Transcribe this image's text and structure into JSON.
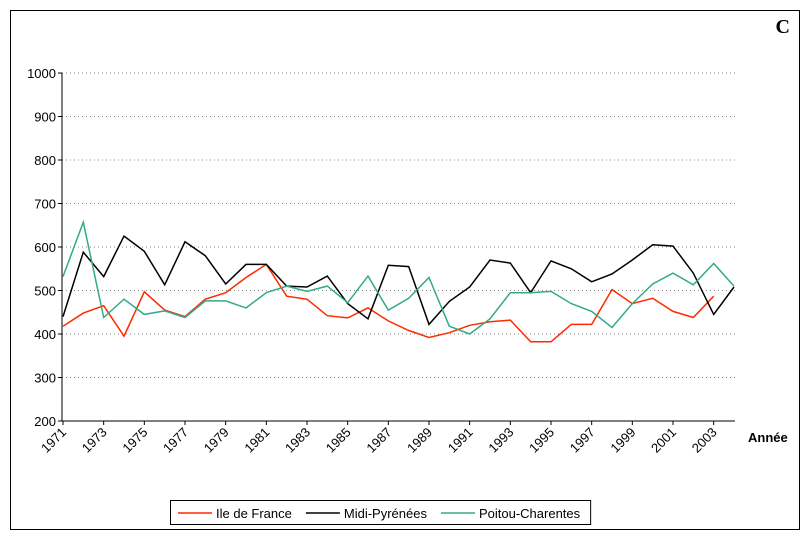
{
  "chart_data": {
    "type": "line",
    "panel_label": "C",
    "x_label": "Année",
    "categories": [
      "1971",
      null,
      "1973",
      null,
      "1975",
      null,
      "1977",
      null,
      "1979",
      null,
      "1981",
      null,
      "1983",
      null,
      "1985",
      null,
      "1987",
      null,
      "1989",
      null,
      "1991",
      null,
      "1993",
      null,
      "1995",
      null,
      "1997",
      null,
      "1999",
      null,
      "2001",
      null,
      "2003",
      null
    ],
    "series": [
      {
        "name": "Ile de France",
        "color": "#ff2a00",
        "values": [
          418,
          448,
          465,
          395,
          497,
          455,
          440,
          480,
          495,
          530,
          560,
          487,
          480,
          442,
          437,
          460,
          430,
          408,
          392,
          403,
          420,
          428,
          432,
          382,
          382,
          422,
          422,
          502,
          470,
          482,
          452,
          438,
          487,
          null
        ]
      },
      {
        "name": "Midi-Pyrénées",
        "color": "#000000",
        "values": [
          440,
          588,
          532,
          625,
          590,
          513,
          612,
          580,
          515,
          560,
          560,
          510,
          508,
          533,
          470,
          435,
          558,
          555,
          422,
          475,
          508,
          570,
          563,
          495,
          568,
          550,
          520,
          538,
          570,
          605,
          602,
          540,
          445,
          508
        ]
      },
      {
        "name": "Poitou-Charentes",
        "color": "#33aa88",
        "values": [
          532,
          657,
          438,
          480,
          445,
          453,
          438,
          476,
          476,
          460,
          495,
          510,
          498,
          510,
          472,
          533,
          455,
          482,
          530,
          418,
          400,
          435,
          495,
          495,
          498,
          470,
          452,
          415,
          470,
          515,
          540,
          513,
          562,
          510
        ]
      }
    ],
    "ylim": [
      200,
      1000
    ],
    "yticks": [
      200,
      300,
      400,
      500,
      600,
      700,
      800,
      900,
      1000
    ],
    "grid": true,
    "legend": "bottom"
  }
}
